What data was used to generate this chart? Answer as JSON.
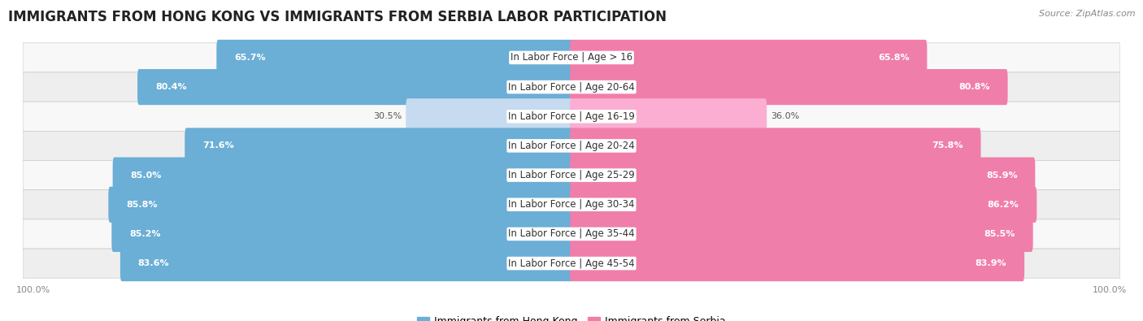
{
  "title": "IMMIGRANTS FROM HONG KONG VS IMMIGRANTS FROM SERBIA LABOR PARTICIPATION",
  "source": "Source: ZipAtlas.com",
  "categories": [
    "In Labor Force | Age > 16",
    "In Labor Force | Age 20-64",
    "In Labor Force | Age 16-19",
    "In Labor Force | Age 20-24",
    "In Labor Force | Age 25-29",
    "In Labor Force | Age 30-34",
    "In Labor Force | Age 35-44",
    "In Labor Force | Age 45-54"
  ],
  "hong_kong_values": [
    65.7,
    80.4,
    30.5,
    71.6,
    85.0,
    85.8,
    85.2,
    83.6
  ],
  "serbia_values": [
    65.8,
    80.8,
    36.0,
    75.8,
    85.9,
    86.2,
    85.5,
    83.9
  ],
  "hong_kong_color": "#6BAED6",
  "serbia_color": "#F07EAA",
  "hong_kong_color_light": "#C6DBEF",
  "serbia_color_light": "#FBAED2",
  "row_bg_alt": "#EEEEEE",
  "row_bg_main": "#F8F8F8",
  "background_color": "#FFFFFF",
  "title_fontsize": 12,
  "label_fontsize": 8.5,
  "value_fontsize": 8,
  "legend_fontsize": 9,
  "axis_label_fontsize": 8,
  "max_value": 100.0,
  "threshold_light": 50
}
